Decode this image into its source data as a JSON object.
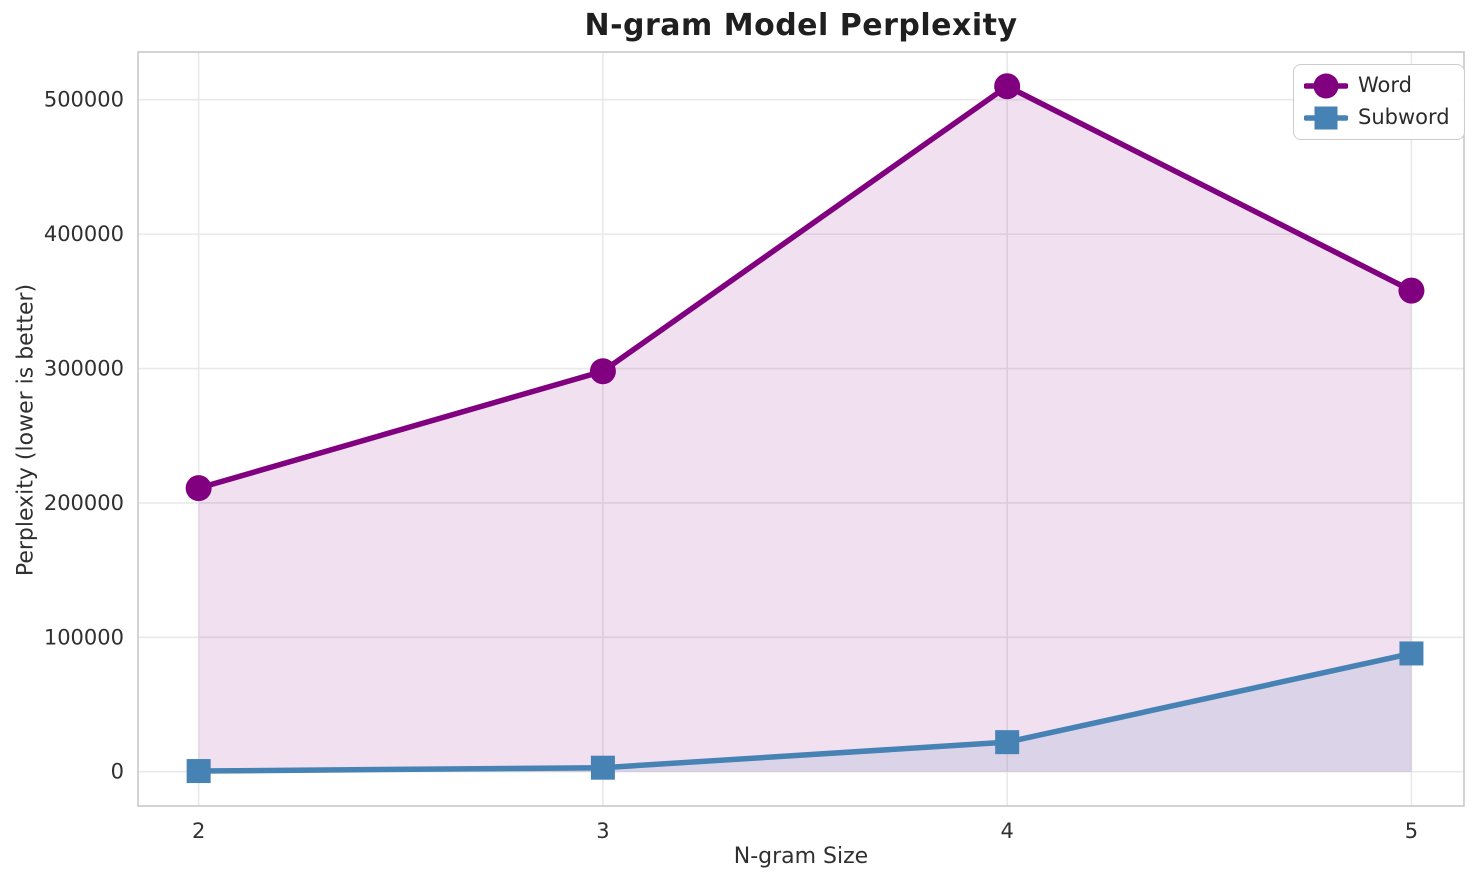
{
  "chart_data": {
    "type": "line",
    "title": "N-gram Model Perplexity",
    "xlabel": "N-gram Size",
    "ylabel": "Perplexity (lower is better)",
    "x": [
      2,
      3,
      4,
      5
    ],
    "x_tick_labels": [
      "2",
      "3",
      "4",
      "5"
    ],
    "y_ticks": [
      0,
      100000,
      200000,
      300000,
      400000,
      500000
    ],
    "xlim": [
      1.85,
      5.13
    ],
    "ylim": [
      -25500,
      535500
    ],
    "grid": true,
    "legend_position": "upper right",
    "series": [
      {
        "name": "Word",
        "marker": "circle",
        "color": "#800080",
        "area_fill": true,
        "fill_opacity": 0.12,
        "values": [
          211000,
          298000,
          510000,
          358000
        ]
      },
      {
        "name": "Subword",
        "marker": "square",
        "color": "#4682B4",
        "area_fill": true,
        "fill_opacity": 0.12,
        "values": [
          500,
          3000,
          22000,
          88000
        ]
      }
    ],
    "style": {
      "grid_color": "#e9e9e9",
      "spine_color": "#c8c8c8",
      "tick_label_color": "#303030",
      "line_width": 5.5,
      "marker_size": 26
    }
  }
}
